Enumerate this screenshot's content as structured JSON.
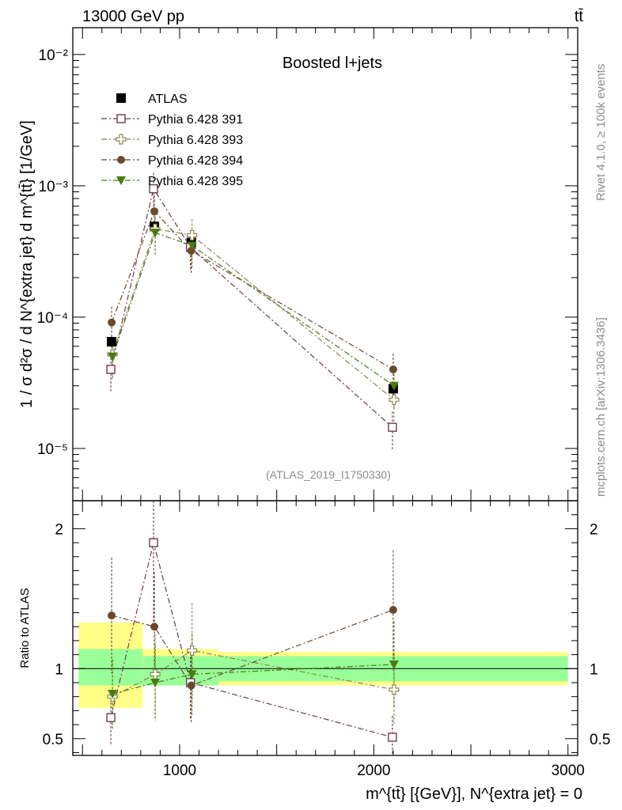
{
  "header": {
    "left": "13000 GeV pp",
    "right": "tt̄"
  },
  "side_labels": {
    "rivet": "Rivet 4.1.0, ≥ 100k events",
    "mcplots": "mcplots.cern.ch [arXiv:1306.3436]"
  },
  "colors": {
    "atlas": "#000000",
    "p391": "#6a3d4e",
    "p393": "#8b8352",
    "p394": "#6b4a2e",
    "p395": "#4a7a10",
    "band_inner": "#99ff99",
    "band_outer": "#ffff88"
  },
  "chart_data": [
    {
      "type": "scatter",
      "panel": "main",
      "title": "Boosted l+jets",
      "watermark": "(ATLAS_2019_I1750330)",
      "ylabel": "1 / σ d²σ / d N^{extra jet} d m^{tt̄} [1/GeV]",
      "yscale": "log",
      "xlim": [
        450,
        3050
      ],
      "ylim": [
        4e-06,
        0.016
      ],
      "ytick_labels": [
        "10⁻⁵",
        "10⁻⁴",
        "10⁻³",
        "10⁻²"
      ],
      "legend_position": "top-left",
      "x": [
        650,
        870,
        1060,
        2100
      ],
      "series": [
        {
          "name": "ATLAS",
          "marker": "square-filled",
          "values": [
            6.5e-05,
            0.00049,
            0.00037,
            2.85e-05
          ]
        },
        {
          "name": "Pythia 6.428 391",
          "marker": "square-open",
          "values": [
            4e-05,
            0.00095,
            0.00034,
            1.45e-05
          ]
        },
        {
          "name": "Pythia 6.428 393",
          "marker": "cross-open",
          "values": [
            5.2e-05,
            0.00047,
            0.00042,
            2.35e-05
          ]
        },
        {
          "name": "Pythia 6.428 394",
          "marker": "circle-filled",
          "values": [
            9.1e-05,
            0.00064,
            0.00032,
            4e-05
          ]
        },
        {
          "name": "Pythia 6.428 395",
          "marker": "triangle-down-filled",
          "values": [
            5e-05,
            0.00044,
            0.00035,
            3e-05
          ]
        }
      ]
    },
    {
      "type": "scatter",
      "panel": "ratio",
      "ylabel": "Ratio to ATLAS",
      "xlabel": "m^{tt̄} [{GeV}], N^{extra jet} = 0",
      "xlim": [
        450,
        3050
      ],
      "ylim": [
        0.38,
        2.2
      ],
      "xtick_labels": [
        "1000",
        "2000",
        "3000"
      ],
      "ytick_labels": [
        "0.5",
        "1",
        "2"
      ],
      "x": [
        650,
        870,
        1060,
        2100
      ],
      "series": [
        {
          "name": "Pythia 6.428 391",
          "values": [
            0.65,
            1.9,
            0.9,
            0.51
          ]
        },
        {
          "name": "Pythia 6.428 393",
          "values": [
            0.8,
            0.96,
            1.13,
            0.85
          ]
        },
        {
          "name": "Pythia 6.428 394",
          "values": [
            1.38,
            1.3,
            0.88,
            1.42
          ]
        },
        {
          "name": "Pythia 6.428 395",
          "values": [
            0.82,
            0.9,
            0.96,
            1.03
          ]
        }
      ],
      "band_bins": [
        {
          "xlo": 480,
          "xhi": 810,
          "inner": [
            0.88,
            1.14
          ],
          "outer": [
            0.72,
            1.33
          ]
        },
        {
          "xlo": 810,
          "xhi": 1200,
          "inner": [
            0.88,
            1.09
          ],
          "outer": [
            0.88,
            1.14
          ]
        },
        {
          "xlo": 1200,
          "xhi": 3000,
          "inner": [
            0.91,
            1.09
          ],
          "outer": [
            0.88,
            1.12
          ]
        }
      ]
    }
  ]
}
